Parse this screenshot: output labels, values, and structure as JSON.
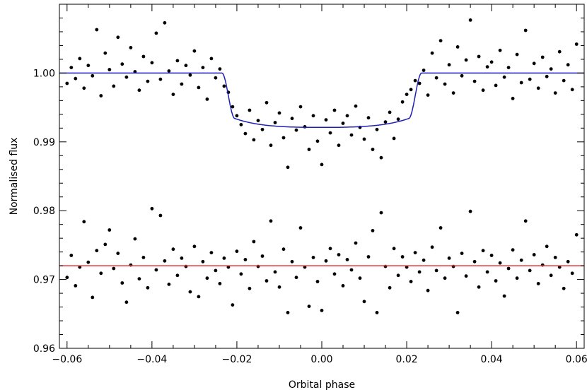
{
  "chart_data": {
    "type": "scatter",
    "title": "",
    "xlabel": "Orbital phase",
    "ylabel": "Normalised flux",
    "xlim": [
      -0.0618,
      0.0618
    ],
    "ylim": [
      0.96,
      1.01
    ],
    "xticks": [
      -0.06,
      -0.04,
      -0.02,
      0.0,
      0.02,
      0.04,
      0.06
    ],
    "xtick_labels": [
      "−0.06",
      "−0.04",
      "−0.02",
      "0.00",
      "0.02",
      "0.04",
      "0.06"
    ],
    "yticks": [
      0.96,
      0.97,
      0.98,
      0.99,
      1.0
    ],
    "ytick_labels": [
      "0.96",
      "0.97",
      "0.98",
      "0.99",
      "1.00"
    ],
    "grid": false,
    "legend": "none",
    "series": [
      {
        "kind": "points",
        "color": "#000000",
        "points": [
          [
            -0.06,
            0.9985
          ],
          [
            -0.059,
            1.0008
          ],
          [
            -0.058,
            0.9992
          ],
          [
            -0.057,
            1.0021
          ],
          [
            -0.056,
            0.9978
          ],
          [
            -0.055,
            1.0011
          ],
          [
            -0.054,
            0.9996
          ],
          [
            -0.053,
            1.0063
          ],
          [
            -0.052,
            0.9967
          ],
          [
            -0.051,
            1.0029
          ],
          [
            -0.05,
            1.0005
          ],
          [
            -0.049,
            0.9981
          ],
          [
            -0.048,
            1.0052
          ],
          [
            -0.047,
            1.0013
          ],
          [
            -0.046,
            0.9994
          ],
          [
            -0.045,
            1.0037
          ],
          [
            -0.044,
            1.0002
          ],
          [
            -0.043,
            0.9975
          ],
          [
            -0.042,
            1.0024
          ],
          [
            -0.041,
            0.9988
          ],
          [
            -0.04,
            1.0015
          ],
          [
            -0.039,
            1.0058
          ],
          [
            -0.038,
            0.9991
          ],
          [
            -0.037,
            1.0073
          ],
          [
            -0.036,
            1.0003
          ],
          [
            -0.035,
            0.9969
          ],
          [
            -0.034,
            1.0018
          ],
          [
            -0.033,
            0.9984
          ],
          [
            -0.032,
            1.0011
          ],
          [
            -0.031,
            0.9997
          ],
          [
            -0.03,
            1.0032
          ],
          [
            -0.029,
            0.9979
          ],
          [
            -0.028,
            1.0008
          ],
          [
            -0.027,
            0.9962
          ],
          [
            -0.026,
            1.0021
          ],
          [
            -0.025,
            0.9993
          ],
          [
            -0.024,
            1.0006
          ],
          [
            -0.023,
            0.9981
          ],
          [
            -0.022,
            0.9972
          ],
          [
            -0.021,
            0.9951
          ],
          [
            -0.02,
            0.9938
          ],
          [
            -0.019,
            0.9925
          ],
          [
            -0.018,
            0.9912
          ],
          [
            -0.017,
            0.9946
          ],
          [
            -0.016,
            0.9903
          ],
          [
            -0.015,
            0.9931
          ],
          [
            -0.014,
            0.9918
          ],
          [
            -0.013,
            0.9957
          ],
          [
            -0.012,
            0.9895
          ],
          [
            -0.011,
            0.9928
          ],
          [
            -0.01,
            0.9942
          ],
          [
            -0.009,
            0.9906
          ],
          [
            -0.008,
            0.9863
          ],
          [
            -0.007,
            0.9934
          ],
          [
            -0.006,
            0.9917
          ],
          [
            -0.005,
            0.9951
          ],
          [
            -0.004,
            0.9922
          ],
          [
            -0.003,
            0.9889
          ],
          [
            -0.002,
            0.9938
          ],
          [
            -0.001,
            0.9901
          ],
          [
            0.0,
            0.9867
          ],
          [
            0.001,
            0.9932
          ],
          [
            0.002,
            0.9913
          ],
          [
            0.003,
            0.9946
          ],
          [
            0.004,
            0.9895
          ],
          [
            0.005,
            0.9927
          ],
          [
            0.006,
            0.9938
          ],
          [
            0.007,
            0.991
          ],
          [
            0.008,
            0.9952
          ],
          [
            0.009,
            0.9921
          ],
          [
            0.01,
            0.9904
          ],
          [
            0.011,
            0.9935
          ],
          [
            0.012,
            0.9889
          ],
          [
            0.013,
            0.9918
          ],
          [
            0.014,
            0.9877
          ],
          [
            0.015,
            0.9929
          ],
          [
            0.016,
            0.9943
          ],
          [
            0.017,
            0.9905
          ],
          [
            0.018,
            0.9933
          ],
          [
            0.019,
            0.9958
          ],
          [
            0.02,
            0.9969
          ],
          [
            0.021,
            0.9976
          ],
          [
            0.022,
            0.9989
          ],
          [
            0.023,
            0.9985
          ],
          [
            0.024,
            1.0004
          ],
          [
            0.025,
            0.9968
          ],
          [
            0.026,
            1.0029
          ],
          [
            0.027,
            0.9993
          ],
          [
            0.028,
            1.0047
          ],
          [
            0.029,
            0.9984
          ],
          [
            0.03,
            1.0012
          ],
          [
            0.031,
            0.9971
          ],
          [
            0.032,
            1.0038
          ],
          [
            0.033,
            0.9996
          ],
          [
            0.034,
            1.0019
          ],
          [
            0.035,
            1.0077
          ],
          [
            0.036,
            0.9988
          ],
          [
            0.037,
            1.0024
          ],
          [
            0.038,
            0.9975
          ],
          [
            0.039,
            1.0009
          ],
          [
            0.04,
            1.0016
          ],
          [
            0.041,
            0.9982
          ],
          [
            0.042,
            1.0033
          ],
          [
            0.043,
            0.9994
          ],
          [
            0.044,
            1.0008
          ],
          [
            0.045,
            0.9963
          ],
          [
            0.046,
            1.0027
          ],
          [
            0.047,
            0.9986
          ],
          [
            0.048,
            1.0062
          ],
          [
            0.049,
            0.9991
          ],
          [
            0.05,
            1.0014
          ],
          [
            0.051,
            0.9978
          ],
          [
            0.052,
            1.0023
          ],
          [
            0.053,
            0.9995
          ],
          [
            0.054,
            1.0006
          ],
          [
            0.055,
            0.9971
          ],
          [
            0.056,
            1.0031
          ],
          [
            0.057,
            0.9989
          ],
          [
            0.058,
            1.0012
          ],
          [
            0.059,
            0.9976
          ],
          [
            0.06,
            1.0042
          ],
          [
            -0.06,
            0.9703
          ],
          [
            -0.059,
            0.9735
          ],
          [
            -0.058,
            0.9691
          ],
          [
            -0.057,
            0.9718
          ],
          [
            -0.056,
            0.9784
          ],
          [
            -0.055,
            0.9725
          ],
          [
            -0.054,
            0.9674
          ],
          [
            -0.053,
            0.9742
          ],
          [
            -0.052,
            0.9709
          ],
          [
            -0.051,
            0.9751
          ],
          [
            -0.05,
            0.9772
          ],
          [
            -0.049,
            0.9716
          ],
          [
            -0.048,
            0.9738
          ],
          [
            -0.047,
            0.9695
          ],
          [
            -0.046,
            0.9667
          ],
          [
            -0.045,
            0.9721
          ],
          [
            -0.044,
            0.9759
          ],
          [
            -0.043,
            0.9701
          ],
          [
            -0.042,
            0.9732
          ],
          [
            -0.041,
            0.9688
          ],
          [
            -0.04,
            0.9803
          ],
          [
            -0.039,
            0.9714
          ],
          [
            -0.038,
            0.9793
          ],
          [
            -0.037,
            0.9727
          ],
          [
            -0.036,
            0.9693
          ],
          [
            -0.035,
            0.9744
          ],
          [
            -0.034,
            0.9706
          ],
          [
            -0.033,
            0.9731
          ],
          [
            -0.032,
            0.9719
          ],
          [
            -0.031,
            0.9682
          ],
          [
            -0.03,
            0.9748
          ],
          [
            -0.029,
            0.9675
          ],
          [
            -0.028,
            0.9726
          ],
          [
            -0.027,
            0.9702
          ],
          [
            -0.026,
            0.9739
          ],
          [
            -0.025,
            0.9713
          ],
          [
            -0.024,
            0.9694
          ],
          [
            -0.023,
            0.9731
          ],
          [
            -0.022,
            0.9718
          ],
          [
            -0.021,
            0.9663
          ],
          [
            -0.02,
            0.9741
          ],
          [
            -0.019,
            0.9708
          ],
          [
            -0.018,
            0.9729
          ],
          [
            -0.017,
            0.9687
          ],
          [
            -0.016,
            0.9755
          ],
          [
            -0.015,
            0.9719
          ],
          [
            -0.014,
            0.9734
          ],
          [
            -0.013,
            0.9698
          ],
          [
            -0.012,
            0.9785
          ],
          [
            -0.011,
            0.9711
          ],
          [
            -0.01,
            0.9689
          ],
          [
            -0.009,
            0.9744
          ],
          [
            -0.008,
            0.9652
          ],
          [
            -0.007,
            0.9726
          ],
          [
            -0.006,
            0.9703
          ],
          [
            -0.005,
            0.9775
          ],
          [
            -0.004,
            0.9718
          ],
          [
            -0.003,
            0.9661
          ],
          [
            -0.002,
            0.9732
          ],
          [
            -0.001,
            0.9697
          ],
          [
            0.0,
            0.9655
          ],
          [
            0.001,
            0.9727
          ],
          [
            0.002,
            0.9745
          ],
          [
            0.003,
            0.9708
          ],
          [
            0.004,
            0.9736
          ],
          [
            0.005,
            0.9691
          ],
          [
            0.006,
            0.9729
          ],
          [
            0.007,
            0.9714
          ],
          [
            0.008,
            0.9753
          ],
          [
            0.009,
            0.9702
          ],
          [
            0.01,
            0.9668
          ],
          [
            0.011,
            0.9733
          ],
          [
            0.012,
            0.9771
          ],
          [
            0.013,
            0.9652
          ],
          [
            0.014,
            0.9797
          ],
          [
            0.015,
            0.9719
          ],
          [
            0.016,
            0.9688
          ],
          [
            0.017,
            0.9745
          ],
          [
            0.018,
            0.9706
          ],
          [
            0.019,
            0.9733
          ],
          [
            0.02,
            0.9718
          ],
          [
            0.021,
            0.9697
          ],
          [
            0.022,
            0.9739
          ],
          [
            0.023,
            0.9711
          ],
          [
            0.024,
            0.9728
          ],
          [
            0.025,
            0.9684
          ],
          [
            0.026,
            0.9747
          ],
          [
            0.027,
            0.9713
          ],
          [
            0.028,
            0.9775
          ],
          [
            0.029,
            0.9702
          ],
          [
            0.03,
            0.9731
          ],
          [
            0.031,
            0.9719
          ],
          [
            0.032,
            0.9652
          ],
          [
            0.033,
            0.9738
          ],
          [
            0.034,
            0.9705
          ],
          [
            0.035,
            0.9799
          ],
          [
            0.036,
            0.9726
          ],
          [
            0.037,
            0.9689
          ],
          [
            0.038,
            0.9742
          ],
          [
            0.039,
            0.9711
          ],
          [
            0.04,
            0.9735
          ],
          [
            0.041,
            0.9698
          ],
          [
            0.042,
            0.9724
          ],
          [
            0.043,
            0.9676
          ],
          [
            0.044,
            0.9716
          ],
          [
            0.045,
            0.9743
          ],
          [
            0.046,
            0.9702
          ],
          [
            0.047,
            0.9728
          ],
          [
            0.048,
            0.9785
          ],
          [
            0.049,
            0.9713
          ],
          [
            0.05,
            0.9736
          ],
          [
            0.051,
            0.9694
          ],
          [
            0.052,
            0.9721
          ],
          [
            0.053,
            0.9748
          ],
          [
            0.054,
            0.9706
          ],
          [
            0.055,
            0.9732
          ],
          [
            0.056,
            0.9718
          ],
          [
            0.057,
            0.9687
          ],
          [
            0.058,
            0.9726
          ],
          [
            0.059,
            0.9709
          ],
          [
            0.06,
            0.9765
          ]
        ]
      },
      {
        "kind": "line",
        "color": "#1f1fb4",
        "baseline": 1.0,
        "depth": 0.0075,
        "contact_phase": 0.0235,
        "ingress_width": 0.003
      },
      {
        "kind": "line",
        "color": "#e8343c",
        "constant": 0.972
      }
    ]
  }
}
